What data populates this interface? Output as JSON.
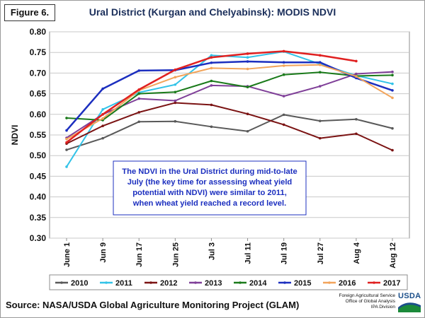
{
  "figure_label": "Figure 6.",
  "source_text": "Source: NASA/USDA Global Agriculture Monitoring Project (GLAM)",
  "agency_lines": [
    "Foreign Agricultural Service",
    "Office of Global Analysis",
    "IPA Division"
  ],
  "logo_text": "USDA",
  "chart_data": {
    "type": "line",
    "title": "Ural District (Kurgan and Chelyabinsk): MODIS NDVI",
    "ylabel": "NDVI",
    "xlabel": "",
    "ylim": [
      0.3,
      0.8
    ],
    "yticks": [
      "0.30",
      "0.35",
      "0.40",
      "0.45",
      "0.50",
      "0.55",
      "0.60",
      "0.65",
      "0.70",
      "0.75",
      "0.80"
    ],
    "categories": [
      "June 1",
      "Jun 9",
      "Jun 17",
      "Jun 25",
      "Jul 3",
      "Jul 11",
      "Jul 19",
      "Jul 27",
      "Aug 4",
      "Aug 12"
    ],
    "grid": true,
    "legend_position": "bottom",
    "annotation": "The NDVI in the Ural District during mid-to-late July (the key time for assessing wheat yield potential with NDVI) were similar to 2011, when wheat yield reached a record level.",
    "series": [
      {
        "name": "2010",
        "color": "#595959",
        "values": [
          0.514,
          0.542,
          0.582,
          0.583,
          0.57,
          0.559,
          0.599,
          0.584,
          0.588,
          0.566
        ]
      },
      {
        "name": "2011",
        "color": "#33c3e8",
        "values": [
          0.473,
          0.612,
          0.653,
          0.672,
          0.743,
          0.738,
          0.752,
          0.722,
          0.694,
          0.674
        ]
      },
      {
        "name": "2012",
        "color": "#7b1313",
        "values": [
          0.529,
          0.572,
          0.605,
          0.628,
          0.623,
          0.601,
          0.575,
          0.542,
          0.553,
          0.513
        ]
      },
      {
        "name": "2013",
        "color": "#7f3f98",
        "values": [
          0.543,
          0.6,
          0.638,
          0.633,
          0.67,
          0.668,
          0.644,
          0.668,
          0.698,
          0.703
        ]
      },
      {
        "name": "2014",
        "color": "#1a7a1a",
        "values": [
          0.591,
          0.586,
          0.65,
          0.654,
          0.681,
          0.666,
          0.696,
          0.702,
          0.693,
          0.695
        ]
      },
      {
        "name": "2015",
        "color": "#1c2fbf",
        "values": [
          0.561,
          0.662,
          0.706,
          0.707,
          0.725,
          0.728,
          0.726,
          0.726,
          0.688,
          0.658
        ]
      },
      {
        "name": "2016",
        "color": "#f2a45b",
        "values": [
          0.54,
          0.59,
          0.658,
          0.69,
          0.712,
          0.71,
          0.718,
          0.72,
          0.692,
          0.64
        ]
      },
      {
        "name": "2017",
        "color": "#e02020",
        "values": [
          0.532,
          0.6,
          0.66,
          0.708,
          0.738,
          0.747,
          0.753,
          0.743,
          0.729,
          null
        ]
      }
    ]
  }
}
